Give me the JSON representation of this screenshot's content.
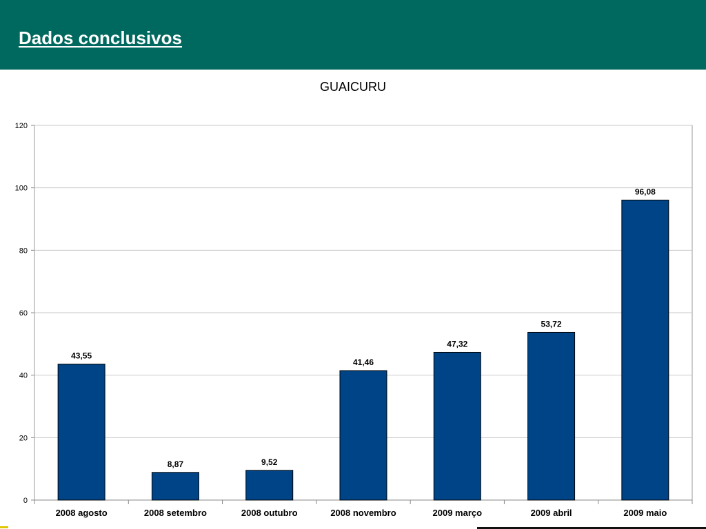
{
  "header": {
    "title": "Dados conclusivos"
  },
  "colors": {
    "header_bg": "#00695f",
    "bar_fill": "#004488",
    "grid": "#c8c8c8"
  },
  "chart_data": {
    "type": "bar",
    "title": "GUAICURU",
    "xlabel": "",
    "ylabel": "",
    "categories": [
      "2008 agosto",
      "2008 setembro",
      "2008 outubro",
      "2008 novembro",
      "2009 março",
      "2009 abril",
      "2009 maio"
    ],
    "values": [
      43.55,
      8.87,
      9.52,
      41.46,
      47.32,
      53.72,
      96.08
    ],
    "value_labels": [
      "43,55",
      "8,87",
      "9,52",
      "41,46",
      "47,32",
      "53,72",
      "96,08"
    ],
    "ylim": [
      0,
      120
    ],
    "yticks": [
      0,
      20,
      40,
      60,
      80,
      100,
      120
    ],
    "grid": true,
    "legend": "none"
  }
}
